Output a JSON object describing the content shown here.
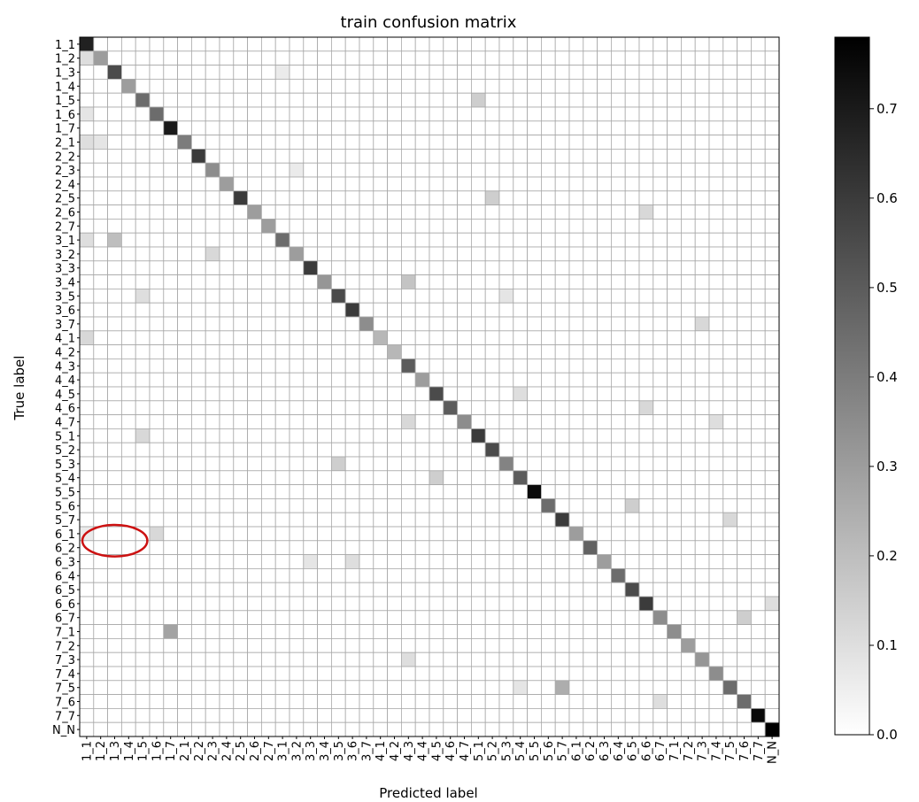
{
  "chart_data": {
    "type": "heatmap",
    "title": "train confusion matrix",
    "xlabel": "Predicted label",
    "ylabel": "True label",
    "labels": [
      "1_1",
      "1_2",
      "1_3",
      "1_4",
      "1_5",
      "1_6",
      "1_7",
      "2_1",
      "2_2",
      "2_3",
      "2_4",
      "2_5",
      "2_6",
      "2_7",
      "3_1",
      "3_2",
      "3_3",
      "3_4",
      "3_5",
      "3_6",
      "3_7",
      "4_1",
      "4_2",
      "4_3",
      "4_4",
      "4_5",
      "4_6",
      "4_7",
      "5_1",
      "5_2",
      "5_3",
      "5_4",
      "5_5",
      "5_6",
      "5_7",
      "6_1",
      "6_2",
      "6_3",
      "6_4",
      "6_5",
      "6_6",
      "6_7",
      "7_1",
      "7_2",
      "7_3",
      "7_4",
      "7_5",
      "7_6",
      "7_7",
      "N_N"
    ],
    "diagonal": [
      0.68,
      0.3,
      0.55,
      0.3,
      0.45,
      0.45,
      0.7,
      0.4,
      0.6,
      0.35,
      0.3,
      0.6,
      0.3,
      0.3,
      0.45,
      0.3,
      0.6,
      0.32,
      0.55,
      0.6,
      0.35,
      0.22,
      0.22,
      0.5,
      0.3,
      0.55,
      0.5,
      0.35,
      0.6,
      0.55,
      0.38,
      0.5,
      0.75,
      0.45,
      0.6,
      0.3,
      0.48,
      0.3,
      0.45,
      0.55,
      0.6,
      0.35,
      0.35,
      0.3,
      0.32,
      0.35,
      0.45,
      0.45,
      0.75,
      0.78
    ],
    "off_diagonal": [
      {
        "row": "1_2",
        "col": "1_1",
        "value": 0.1
      },
      {
        "row": "1_3",
        "col": "3_1",
        "value": 0.06
      },
      {
        "row": "1_5",
        "col": "5_1",
        "value": 0.15
      },
      {
        "row": "1_6",
        "col": "1_1",
        "value": 0.08
      },
      {
        "row": "2_1",
        "col": "1_1",
        "value": 0.1
      },
      {
        "row": "2_1",
        "col": "1_2",
        "value": 0.08
      },
      {
        "row": "2_3",
        "col": "3_2",
        "value": 0.06
      },
      {
        "row": "2_5",
        "col": "5_2",
        "value": 0.15
      },
      {
        "row": "2_6",
        "col": "6_6",
        "value": 0.12
      },
      {
        "row": "3_1",
        "col": "1_1",
        "value": 0.1
      },
      {
        "row": "3_1",
        "col": "1_3",
        "value": 0.2
      },
      {
        "row": "3_2",
        "col": "2_3",
        "value": 0.12
      },
      {
        "row": "3_4",
        "col": "4_3",
        "value": 0.18
      },
      {
        "row": "3_5",
        "col": "1_5",
        "value": 0.1
      },
      {
        "row": "3_5",
        "col": "5_3",
        "value": 0.08
      },
      {
        "row": "3_7",
        "col": "7_3",
        "value": 0.12
      },
      {
        "row": "4_1",
        "col": "1_1",
        "value": 0.12
      },
      {
        "row": "4_5",
        "col": "5_4",
        "value": 0.1
      },
      {
        "row": "4_6",
        "col": "6_6",
        "value": 0.12
      },
      {
        "row": "4_7",
        "col": "4_3",
        "value": 0.12
      },
      {
        "row": "4_7",
        "col": "7_4",
        "value": 0.1
      },
      {
        "row": "5_1",
        "col": "1_5",
        "value": 0.12
      },
      {
        "row": "5_3",
        "col": "3_5",
        "value": 0.15
      },
      {
        "row": "5_4",
        "col": "4_5",
        "value": 0.15
      },
      {
        "row": "5_6",
        "col": "6_5",
        "value": 0.15
      },
      {
        "row": "5_7",
        "col": "7_5",
        "value": 0.12
      },
      {
        "row": "6_1",
        "col": "1_1",
        "value": 0.06
      },
      {
        "row": "6_1",
        "col": "1_6",
        "value": 0.12
      },
      {
        "row": "6_3",
        "col": "3_3",
        "value": 0.08
      },
      {
        "row": "6_3",
        "col": "3_6",
        "value": 0.1
      },
      {
        "row": "6_6",
        "col": "N_N",
        "value": 0.1
      },
      {
        "row": "6_7",
        "col": "7_6",
        "value": 0.15
      },
      {
        "row": "7_1",
        "col": "1_7",
        "value": 0.28
      },
      {
        "row": "7_3",
        "col": "4_3",
        "value": 0.1
      },
      {
        "row": "7_5",
        "col": "5_7",
        "value": 0.25
      },
      {
        "row": "7_5",
        "col": "5_4",
        "value": 0.08
      },
      {
        "row": "7_6",
        "col": "6_7",
        "value": 0.1
      }
    ],
    "colorbar": {
      "range": [
        0.0,
        0.78
      ],
      "ticks": [
        "0.0",
        "0.1",
        "0.2",
        "0.3",
        "0.4",
        "0.5",
        "0.6",
        "0.7"
      ],
      "colormap": "white-to-black"
    },
    "annotation": {
      "shape": "ellipse",
      "color": "#cc1111",
      "rows": [
        "6_1",
        "6_2"
      ],
      "cols": [
        "1_1",
        "1_3"
      ]
    }
  }
}
